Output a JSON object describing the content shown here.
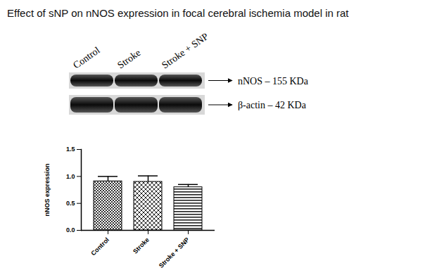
{
  "chart_data": {
    "type": "bar",
    "title": "Effect of sNP on nNOS expression in focal cerebral ischemia model in rat",
    "categories": [
      "Control",
      "Stroke",
      "Stroke + SNP"
    ],
    "values": [
      0.91,
      0.9,
      0.8
    ],
    "errors": [
      0.09,
      0.11,
      0.05
    ],
    "y_label": "nNOS expression",
    "ylim": [
      0,
      1.5
    ],
    "yticks": [
      {
        "value": 0,
        "label": "0.0"
      },
      0.5,
      {
        "value": 1,
        "label": "1.0"
      },
      1.5
    ],
    "grid": false,
    "blot": {
      "lanes": [
        "Control",
        "Stroke",
        "Stroke + SNP"
      ],
      "bands": [
        "nNOS – 155 KDa",
        "β-actin – 42 KDa"
      ]
    }
  }
}
